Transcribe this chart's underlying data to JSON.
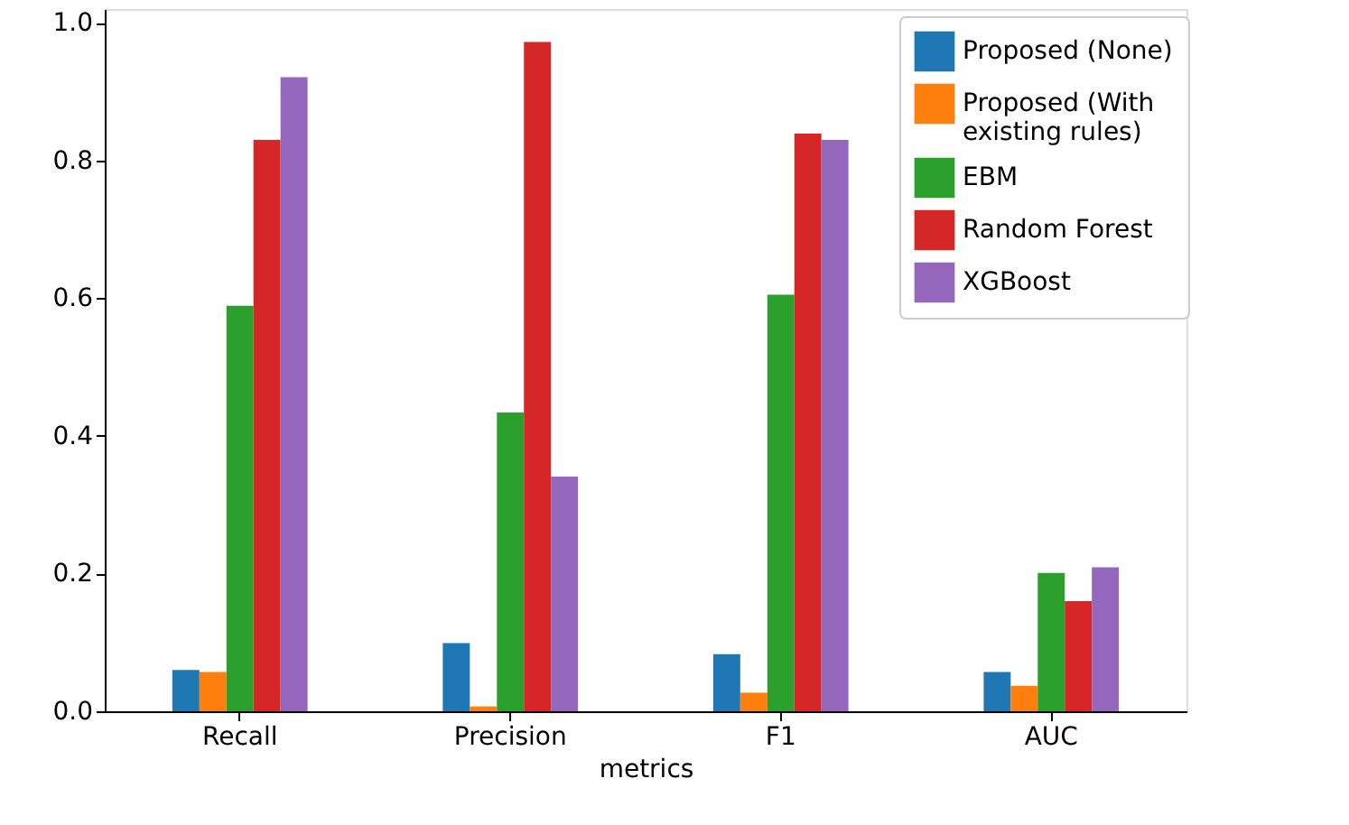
{
  "chart_data": {
    "type": "bar",
    "xlabel": "metrics",
    "categories": [
      "Recall",
      "Precision",
      "F1",
      "AUC"
    ],
    "series": [
      {
        "name": "Proposed (None)",
        "color": "#1f77b4",
        "values": [
          0.06,
          0.099,
          0.083,
          0.057
        ]
      },
      {
        "name": "Proposed (With\n existing rules)",
        "color": "#ff7f0e",
        "values": [
          0.057,
          0.007,
          0.027,
          0.037
        ]
      },
      {
        "name": "EBM",
        "color": "#2ca02c",
        "values": [
          0.589,
          0.434,
          0.605,
          0.201
        ]
      },
      {
        "name": "Random Forest",
        "color": "#d62728",
        "values": [
          0.83,
          0.972,
          0.839,
          0.16
        ]
      },
      {
        "name": "XGBoost",
        "color": "#9467bd",
        "values": [
          0.921,
          0.341,
          0.83,
          0.209
        ]
      }
    ],
    "ylim": [
      0,
      1.02
    ],
    "yticks": [
      {
        "value": 0,
        "label": "0.0"
      },
      {
        "value": 0.2,
        "label": "0.2"
      },
      {
        "value": 0.4,
        "label": "0.4"
      },
      {
        "value": 0.6,
        "label": "0.6"
      },
      {
        "value": 0.8,
        "label": "0.8"
      },
      {
        "value": 1.0,
        "label": "1.0"
      }
    ],
    "grid": false,
    "legend": "top right"
  }
}
